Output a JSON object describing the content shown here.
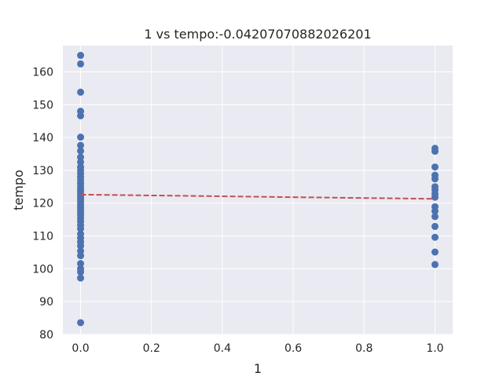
{
  "chart_data": {
    "type": "scatter",
    "title": "1 vs tempo:-0.04207070882026201",
    "xlabel": "1",
    "ylabel": "tempo",
    "xlim": [
      -0.05,
      1.05
    ],
    "ylim": [
      80,
      168
    ],
    "x_ticks": [
      0.0,
      0.2,
      0.4,
      0.6,
      0.8,
      1.0
    ],
    "x_tick_labels": [
      "0.0",
      "0.2",
      "0.4",
      "0.6",
      "0.8",
      "1.0"
    ],
    "y_ticks": [
      80,
      90,
      100,
      110,
      120,
      130,
      140,
      150,
      160
    ],
    "y_tick_labels": [
      "80",
      "90",
      "100",
      "110",
      "120",
      "130",
      "140",
      "150",
      "160"
    ],
    "grid": true,
    "points": [
      {
        "x": 0,
        "y": 165.0
      },
      {
        "x": 0,
        "y": 162.4
      },
      {
        "x": 0,
        "y": 153.8
      },
      {
        "x": 0,
        "y": 148.0
      },
      {
        "x": 0,
        "y": 146.6
      },
      {
        "x": 0,
        "y": 140.1
      },
      {
        "x": 0,
        "y": 137.6
      },
      {
        "x": 0,
        "y": 135.9
      },
      {
        "x": 0,
        "y": 134.0
      },
      {
        "x": 0,
        "y": 132.5
      },
      {
        "x": 0,
        "y": 131.0
      },
      {
        "x": 0,
        "y": 130.0
      },
      {
        "x": 0,
        "y": 129.0
      },
      {
        "x": 0,
        "y": 128.0
      },
      {
        "x": 0,
        "y": 127.0
      },
      {
        "x": 0,
        "y": 126.1
      },
      {
        "x": 0,
        "y": 125.2
      },
      {
        "x": 0,
        "y": 124.3
      },
      {
        "x": 0,
        "y": 123.5
      },
      {
        "x": 0,
        "y": 122.7
      },
      {
        "x": 0,
        "y": 122.0
      },
      {
        "x": 0,
        "y": 121.2
      },
      {
        "x": 0,
        "y": 120.4
      },
      {
        "x": 0,
        "y": 119.6
      },
      {
        "x": 0,
        "y": 118.8
      },
      {
        "x": 0,
        "y": 118.0
      },
      {
        "x": 0,
        "y": 117.2
      },
      {
        "x": 0,
        "y": 116.3
      },
      {
        "x": 0,
        "y": 115.4
      },
      {
        "x": 0,
        "y": 114.4
      },
      {
        "x": 0,
        "y": 113.3
      },
      {
        "x": 0,
        "y": 112.2
      },
      {
        "x": 0,
        "y": 110.6
      },
      {
        "x": 0,
        "y": 109.4
      },
      {
        "x": 0,
        "y": 108.2
      },
      {
        "x": 0,
        "y": 107.0
      },
      {
        "x": 0,
        "y": 105.4
      },
      {
        "x": 0,
        "y": 104.0
      },
      {
        "x": 0,
        "y": 101.6
      },
      {
        "x": 0,
        "y": 100.0
      },
      {
        "x": 0,
        "y": 99.0
      },
      {
        "x": 0,
        "y": 97.2
      },
      {
        "x": 0,
        "y": 83.6
      },
      {
        "x": 1,
        "y": 136.7
      },
      {
        "x": 1,
        "y": 135.8
      },
      {
        "x": 1,
        "y": 131.0
      },
      {
        "x": 1,
        "y": 128.5
      },
      {
        "x": 1,
        "y": 127.4
      },
      {
        "x": 1,
        "y": 125.0
      },
      {
        "x": 1,
        "y": 124.0
      },
      {
        "x": 1,
        "y": 122.8
      },
      {
        "x": 1,
        "y": 121.8
      },
      {
        "x": 1,
        "y": 118.9
      },
      {
        "x": 1,
        "y": 117.6
      },
      {
        "x": 1,
        "y": 115.9
      },
      {
        "x": 1,
        "y": 112.9
      },
      {
        "x": 1,
        "y": 109.6
      },
      {
        "x": 1,
        "y": 105.1
      },
      {
        "x": 1,
        "y": 101.3
      }
    ],
    "trend_line": {
      "x": [
        0,
        1
      ],
      "y": [
        122.6,
        121.3
      ],
      "style": "dashed"
    },
    "colors": {
      "background": "#eaeaf2",
      "grid": "#ffffff",
      "points": "#4c72b0",
      "trend": "#c44e52"
    }
  }
}
